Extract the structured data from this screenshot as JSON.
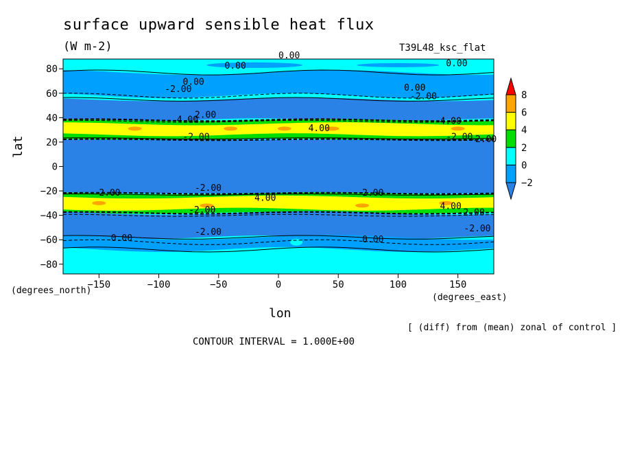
{
  "header": {
    "title": "surface upward sensible heat flux",
    "units": "(W m-2)",
    "run_id": "T39L48_ksc_flat"
  },
  "axes": {
    "x_name": "lon",
    "y_name": "lat",
    "x_units": "(degrees_east)",
    "y_units": "(degrees_north)"
  },
  "footer": {
    "note": "[ (diff) from (mean) zonal of control ]",
    "contour_interval": "CONTOUR INTERVAL = 1.000E+00"
  },
  "colors": {
    "below_-2": "#2b82e6",
    "-2_0": "#00a0ff",
    "0_2": "#00ffff",
    "2_4": "#00dd00",
    "4_6": "#ffff00",
    "6_8": "#ffa500",
    "above_8": "#ff0000"
  },
  "colorbar": {
    "levels": [
      "8",
      "6",
      "4",
      "2",
      "0",
      "−2"
    ]
  },
  "chart_data": {
    "type": "heatmap",
    "title": "surface upward sensible heat flux",
    "subtitle": "(W m-2)",
    "xlabel": "lon",
    "ylabel": "lat",
    "xlim": [
      -180,
      180
    ],
    "ylim": [
      -88,
      88
    ],
    "x_ticks": [
      "−150",
      "−100",
      "−50",
      "0",
      "50",
      "100",
      "150"
    ],
    "y_ticks": [
      "80",
      "60",
      "40",
      "20",
      "0",
      "−20",
      "−40",
      "−60",
      "−80"
    ],
    "contour_levels": [
      -2,
      0,
      2,
      4,
      6,
      8
    ],
    "contour_labels": [
      "0.00",
      "-2.00",
      "4.00",
      "2.00"
    ],
    "zonal_bands": [
      {
        "lat_range": [
          77,
          88
        ],
        "value_range": [
          0,
          2
        ]
      },
      {
        "lat_range": [
          60,
          77
        ],
        "value_range": [
          -2,
          0
        ]
      },
      {
        "lat_range": [
          38,
          55
        ],
        "value_range": [
          -4,
          -2
        ]
      },
      {
        "lat_range": [
          22,
          38
        ],
        "value_range": [
          2,
          6
        ]
      },
      {
        "lat_range": [
          -22,
          22
        ],
        "value_range": [
          -4,
          -2
        ]
      },
      {
        "lat_range": [
          -38,
          -22
        ],
        "value_range": [
          2,
          6
        ]
      },
      {
        "lat_range": [
          -58,
          -38
        ],
        "value_range": [
          -4,
          -2
        ]
      },
      {
        "lat_range": [
          -68,
          -58
        ],
        "value_range": [
          -2,
          0
        ]
      },
      {
        "lat_range": [
          -88,
          -68
        ],
        "value_range": [
          0,
          2
        ]
      }
    ],
    "grid": false
  }
}
